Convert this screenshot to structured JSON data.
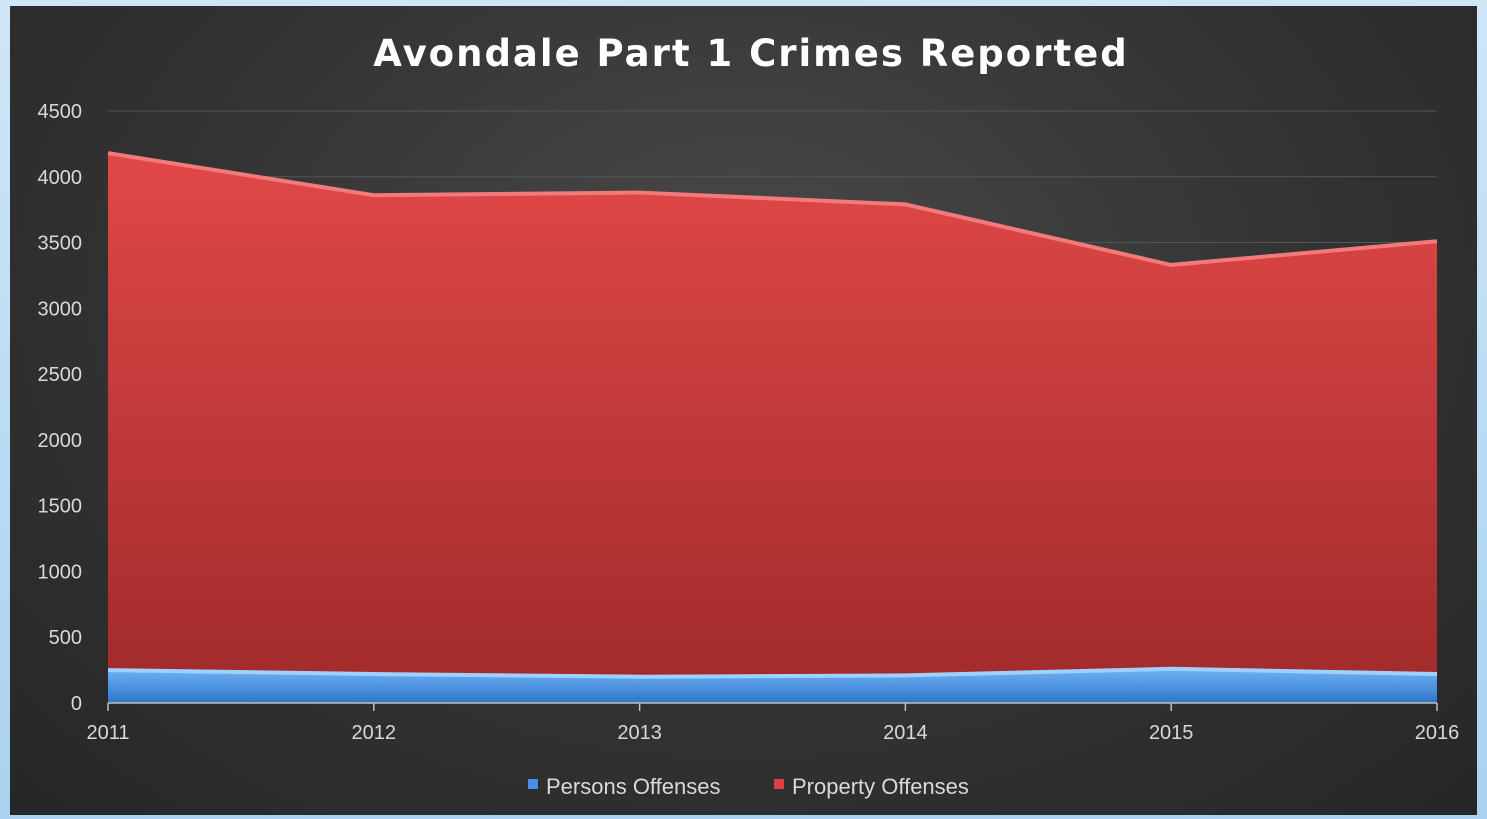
{
  "chart_data": {
    "type": "area",
    "stacked": true,
    "title": "Avondale Part 1 Crimes Reported",
    "xlabel": "",
    "ylabel": "",
    "x": [
      "2011",
      "2012",
      "2013",
      "2014",
      "2015",
      "2016"
    ],
    "ylim": [
      0,
      4500
    ],
    "yticks": [
      "0",
      "500",
      "1000",
      "1500",
      "2000",
      "2500",
      "3000",
      "3500",
      "4000",
      "4500"
    ],
    "grid": true,
    "legend_position": "bottom",
    "series": [
      {
        "name": "Persons Offenses",
        "values": [
          250,
          220,
          200,
          210,
          260,
          220
        ],
        "color": "#4a90e2"
      },
      {
        "name": "Property Offenses",
        "values": [
          3930,
          3640,
          3680,
          3580,
          3070,
          3290
        ],
        "color": "#d94040"
      }
    ]
  }
}
